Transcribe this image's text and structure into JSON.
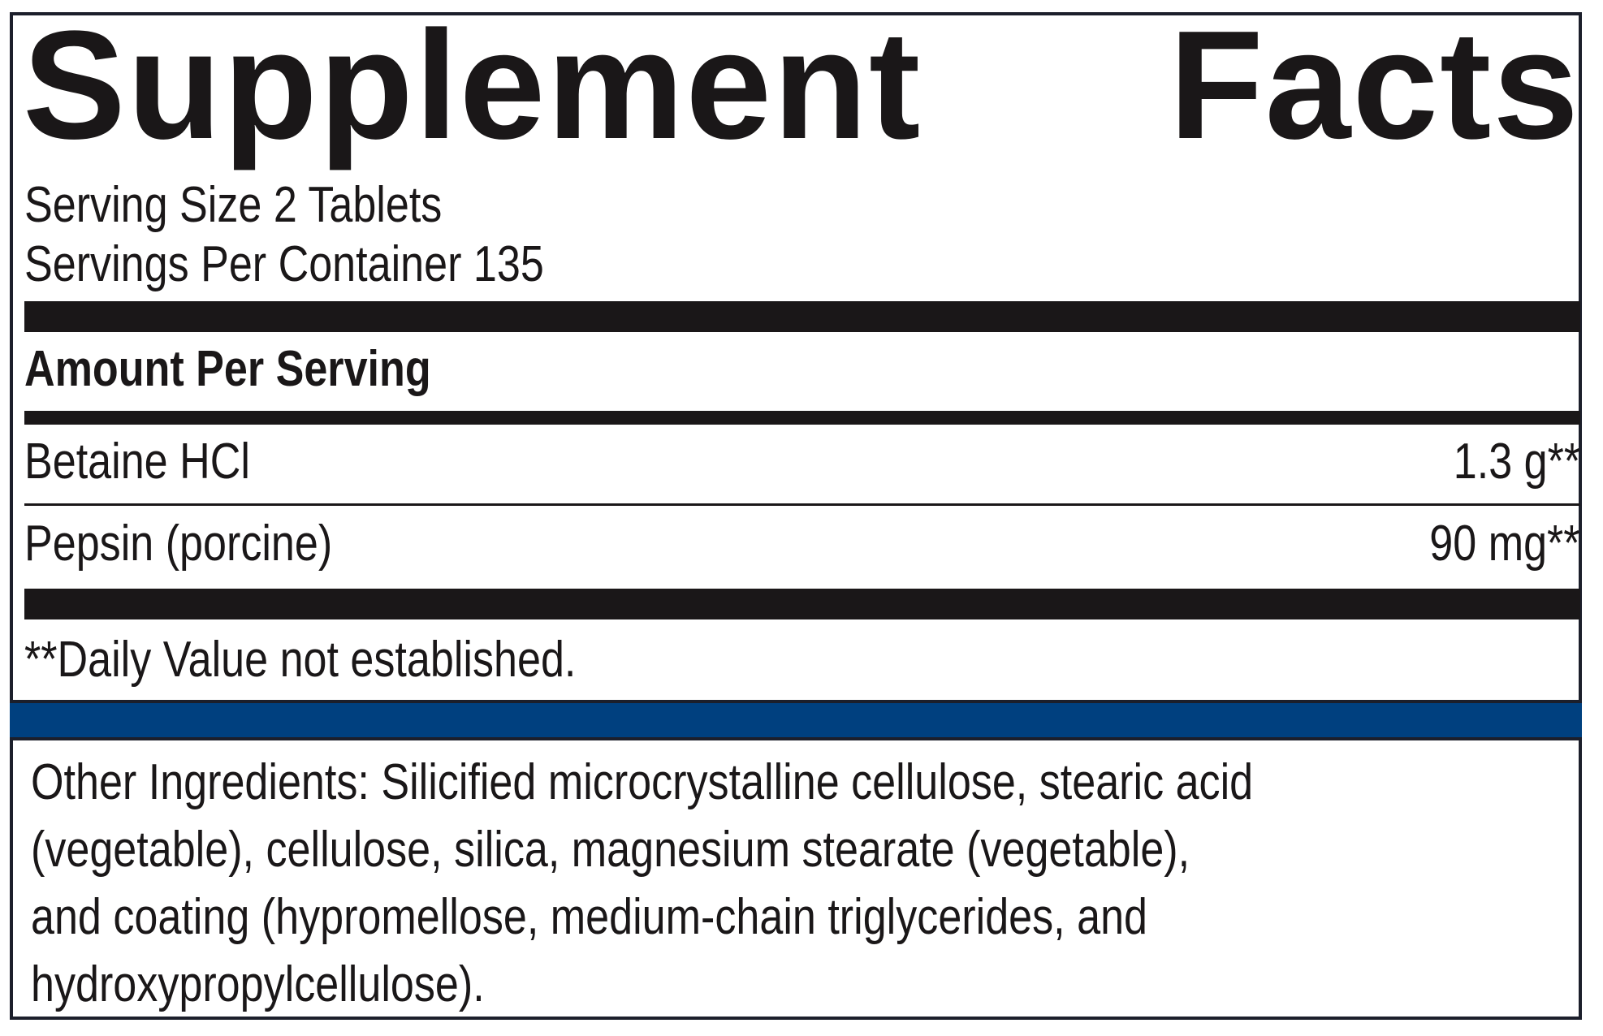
{
  "label": {
    "title_word1": "Supplement",
    "title_word2": "Facts",
    "serving_size": "Serving Size 2 Tablets",
    "servings_per_container": "Servings Per Container 135",
    "amount_header": "Amount Per Serving",
    "ingredients": [
      {
        "name": "Betaine HCl",
        "amount": "1.3 g**"
      },
      {
        "name": "Pepsin (porcine)",
        "amount": "90 mg**"
      }
    ],
    "footnote": "**Daily Value not established.",
    "other_ingredients": [
      "Other Ingredients: Silicified microcrystalline cellulose, stearic acid",
      "(vegetable), cellulose, silica, magnesium stearate (vegetable),",
      "and coating (hypromellose, medium-chain triglycerides, and",
      "hydroxypropylcellulose)."
    ]
  },
  "colors": {
    "accent_band": "#00407f",
    "text": "#1a1718"
  }
}
